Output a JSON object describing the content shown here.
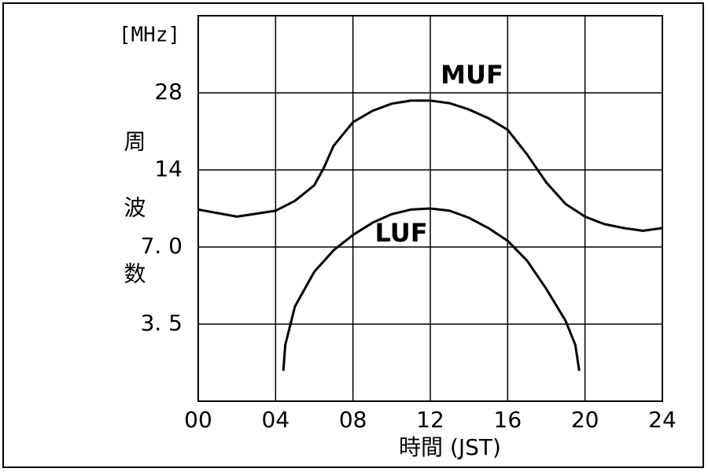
{
  "chart_data": {
    "type": "line",
    "y_unit": "[MHz]",
    "ylabel": "周波数",
    "xlabel": "時間 (JST)",
    "log_y": true,
    "grid": true,
    "xlim": [
      0,
      24
    ],
    "xticks": [
      {
        "value": 0,
        "label": "00"
      },
      {
        "value": 4,
        "label": "04"
      },
      {
        "value": 8,
        "label": "08"
      },
      12,
      16,
      20,
      24
    ],
    "ylim": [
      1.75,
      56
    ],
    "yticks": [
      {
        "value": 3.5,
        "label": "3. 5"
      },
      {
        "value": 7,
        "label": "7. 0"
      },
      14,
      28
    ],
    "series": [
      {
        "name": "MUF",
        "color": "#000000",
        "x": [
          0,
          2,
          4,
          5,
          6,
          6.5,
          7,
          8,
          9,
          10,
          11,
          12,
          13,
          14,
          15,
          16,
          17,
          18,
          19,
          20,
          21,
          22,
          23,
          24
        ],
        "values": [
          9.8,
          9.2,
          9.7,
          10.6,
          12.2,
          14.3,
          17.4,
          21.5,
          23.8,
          25.4,
          26.1,
          26.1,
          25.5,
          24.1,
          22.3,
          20.1,
          16.1,
          12.5,
          10.3,
          9.2,
          8.6,
          8.3,
          8.1,
          8.3
        ]
      },
      {
        "name": "LUF",
        "color": "#000000",
        "x": [
          4.4,
          4.5,
          5,
          6,
          7,
          8,
          9,
          10,
          11,
          12,
          13,
          14,
          15,
          16,
          17,
          18,
          19,
          19.5,
          19.7
        ],
        "values": [
          2.3,
          2.9,
          4.1,
          5.6,
          6.8,
          7.8,
          8.7,
          9.4,
          9.8,
          9.9,
          9.7,
          9.1,
          8.3,
          7.4,
          6.2,
          4.8,
          3.6,
          2.9,
          2.3
        ]
      }
    ]
  }
}
